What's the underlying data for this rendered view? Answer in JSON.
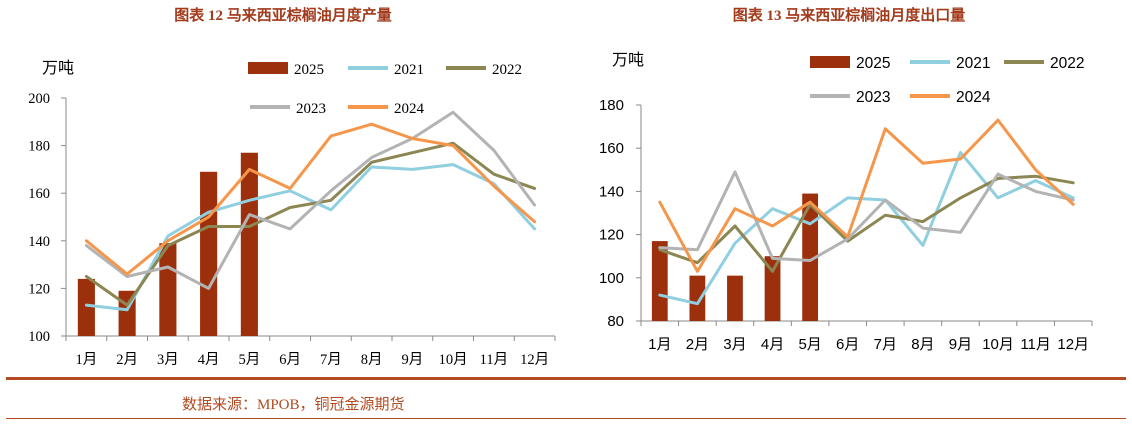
{
  "source_text": "数据来源：MPOB，铜冠金源期货",
  "chart_data": [
    {
      "type": "bar+line",
      "title": "图表 12  马来西亚棕榈油月度产量",
      "ylabel": "万吨",
      "ylim": [
        100,
        200
      ],
      "ystep": 20,
      "categories": [
        "1月",
        "2月",
        "3月",
        "4月",
        "5月",
        "6月",
        "7月",
        "8月",
        "9月",
        "10月",
        "11月",
        "12月"
      ],
      "legend_order": [
        "2025",
        "2021",
        "2022",
        "2023",
        "2024"
      ],
      "grid": false,
      "bar_series": {
        "name": "2025",
        "color": "#9c2f0c",
        "values": [
          124,
          119,
          139,
          169,
          177
        ]
      },
      "line_series": [
        {
          "name": "2021",
          "color": "#8fcfe0",
          "values": [
            113,
            111,
            142,
            152,
            157,
            161,
            153,
            171,
            170,
            172,
            164,
            145
          ]
        },
        {
          "name": "2022",
          "color": "#8c8653",
          "values": [
            125,
            113,
            138,
            146,
            146,
            154,
            157,
            173,
            177,
            181,
            168,
            162
          ]
        },
        {
          "name": "2023",
          "color": "#b3b3b3",
          "values": [
            138,
            125,
            129,
            120,
            151,
            145,
            161,
            175,
            183,
            194,
            178,
            155
          ]
        },
        {
          "name": "2024",
          "color": "#f5964b",
          "values": [
            140,
            126,
            140,
            150,
            170,
            162,
            184,
            189,
            183,
            180,
            163,
            148
          ]
        }
      ]
    },
    {
      "type": "bar+line",
      "title": "图表 13  马来西亚棕榈油月度出口量",
      "ylabel": "万吨",
      "ylim": [
        80,
        180
      ],
      "ystep": 20,
      "categories": [
        "1月",
        "2月",
        "3月",
        "4月",
        "5月",
        "6月",
        "7月",
        "8月",
        "9月",
        "10月",
        "11月",
        "12月"
      ],
      "legend_order": [
        "2025",
        "2021",
        "2022",
        "2023",
        "2024"
      ],
      "grid": false,
      "bar_series": {
        "name": "2025",
        "color": "#9c2f0c",
        "values": [
          117,
          101,
          101,
          110,
          139
        ]
      },
      "line_series": [
        {
          "name": "2021",
          "color": "#8fcfe0",
          "values": [
            92,
            88,
            116,
            132,
            125,
            137,
            136,
            115,
            158,
            137,
            145,
            137
          ]
        },
        {
          "name": "2022",
          "color": "#8c8653",
          "values": [
            113,
            107,
            124,
            103,
            134,
            117,
            129,
            126,
            137,
            146,
            147,
            144
          ]
        },
        {
          "name": "2023",
          "color": "#b3b3b3",
          "values": [
            114,
            113,
            149,
            109,
            108,
            118,
            136,
            123,
            121,
            148,
            140,
            136
          ]
        },
        {
          "name": "2024",
          "color": "#f5964b",
          "values": [
            135,
            103,
            132,
            124,
            135,
            119,
            169,
            153,
            155,
            173,
            150,
            134
          ]
        }
      ]
    }
  ]
}
